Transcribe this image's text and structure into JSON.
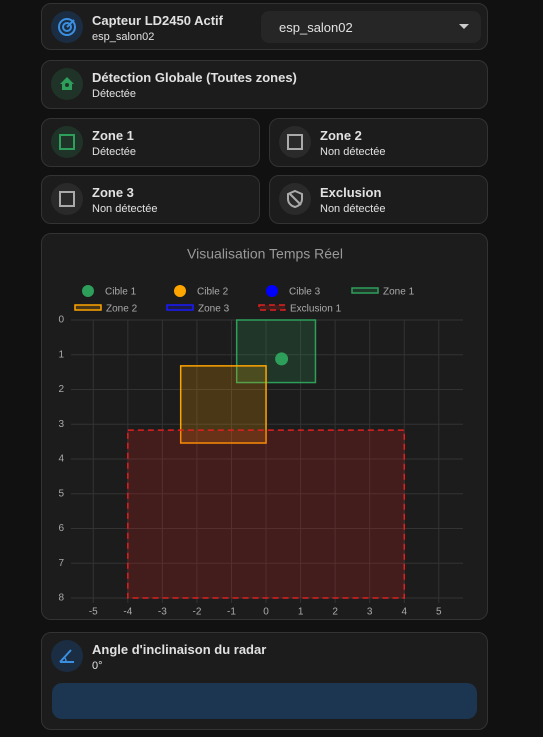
{
  "sensor_card": {
    "title": "Capteur LD2450 Actif",
    "subtitle": "esp_salon02",
    "select": "esp_salon02"
  },
  "global_card": {
    "title": "Détection Globale (Toutes zones)",
    "state": "Détectée"
  },
  "zone_cards": [
    {
      "title": "Zone 1",
      "state": "Détectée"
    },
    {
      "title": "Zone 2",
      "state": "Non détectée"
    },
    {
      "title": "Zone 3",
      "state": "Non détectée"
    },
    {
      "title": "Exclusion",
      "state": "Non détectée"
    }
  ],
  "chart_data": {
    "type": "scatter",
    "title": "Visualisation Temps Réel",
    "xlim": [
      -5.5,
      5.7
    ],
    "ylim": [
      0,
      8
    ],
    "y_reversed": true,
    "grid": true,
    "xticks": [
      -5,
      -4,
      -3,
      -2,
      -1,
      0,
      1,
      2,
      3,
      4,
      5
    ],
    "yticks": [
      0,
      1,
      2,
      3,
      4,
      5,
      6,
      7,
      8
    ],
    "series": [
      {
        "name": "Cible 1",
        "color": "#2e9e5b",
        "x": [
          0.45
        ],
        "y": [
          1.12
        ]
      },
      {
        "name": "Cible 2",
        "color": "#ffa500",
        "x": [],
        "y": []
      },
      {
        "name": "Cible 3",
        "color": "#0000ff",
        "x": [],
        "y": []
      }
    ],
    "zones": [
      {
        "name": "Zone 1",
        "color": "#2e9e5b",
        "x": [
          -0.85,
          1.43
        ],
        "y": [
          0,
          1.8
        ]
      },
      {
        "name": "Zone 2",
        "color": "#ffa500",
        "x": [
          -2.47,
          0
        ],
        "y": [
          1.32,
          3.54
        ]
      },
      {
        "name": "Zone 3",
        "color": "#1a1aff",
        "x": [],
        "y": []
      },
      {
        "name": "Exclusion 1",
        "color": "#e02020",
        "dashed": true,
        "x": [
          -4,
          4
        ],
        "y": [
          3.17,
          8
        ]
      }
    ]
  },
  "angle_card": {
    "title": "Angle d'inclinaison du radar",
    "value": "0°"
  }
}
